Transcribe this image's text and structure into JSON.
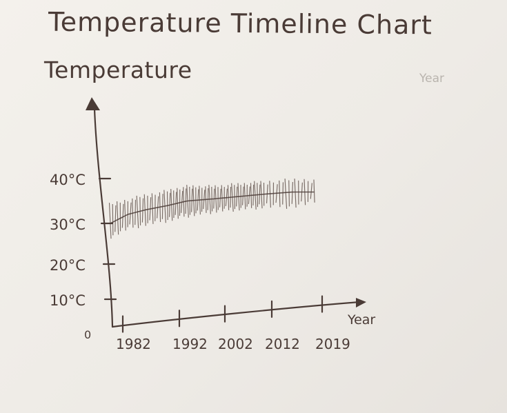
{
  "chart_data": {
    "type": "line",
    "title": "Temperature Timeline Chart",
    "ylabel": "Temperature",
    "xlabel": "Year",
    "faint_label": "Year",
    "x_ticks": [
      "1982",
      "1992",
      "2002",
      "2012",
      "2019"
    ],
    "y_ticks": [
      "10°C",
      "20°C",
      "30°C",
      "40°C"
    ],
    "origin_label": "0",
    "ylim": [
      0,
      40
    ],
    "series": [
      {
        "x": [
          1982,
          1985,
          1988,
          1992,
          1996,
          2002,
          2007,
          2012,
          2016,
          2019
        ],
        "y": [
          30,
          32,
          33,
          34,
          35,
          35.5,
          36,
          36.5,
          37,
          37
        ],
        "band_low": [
          27,
          29,
          30,
          31,
          32,
          33,
          33.5,
          34,
          34,
          35
        ],
        "band_high": [
          34,
          35,
          36,
          37,
          38,
          38,
          38.5,
          39,
          39.5,
          39.5
        ]
      }
    ],
    "grid": false
  },
  "colors": {
    "ink": "#4a3b36",
    "paper": "#f1eee9"
  }
}
